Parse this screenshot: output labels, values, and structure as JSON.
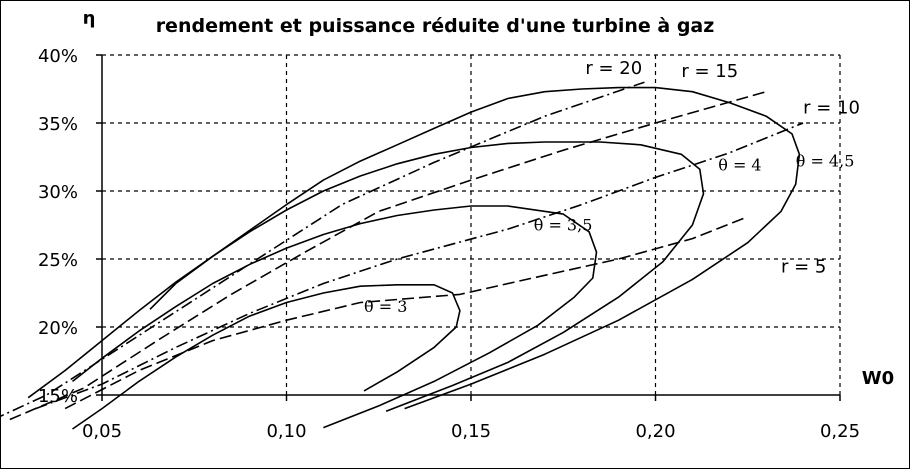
{
  "chart_data": {
    "type": "line",
    "title": "rendement et puissance réduite d'une turbine à gaz",
    "xlabel": "W0",
    "ylabel": "η",
    "xlim": [
      0.05,
      0.25
    ],
    "ylim": [
      0.15,
      0.4
    ],
    "x_ticks": [
      {
        "value": 0.05,
        "label": "0,05"
      },
      {
        "value": 0.1,
        "label": "0,10"
      },
      {
        "value": 0.15,
        "label": "0,15"
      },
      {
        "value": 0.2,
        "label": "0,20"
      },
      {
        "value": 0.25,
        "label": "0,25"
      }
    ],
    "y_ticks": [
      {
        "value": 0.15,
        "label": "15%"
      },
      {
        "value": 0.2,
        "label": "20%"
      },
      {
        "value": 0.25,
        "label": "25%"
      },
      {
        "value": 0.3,
        "label": "30%"
      },
      {
        "value": 0.35,
        "label": "35%"
      },
      {
        "value": 0.4,
        "label": "40%"
      }
    ],
    "grid": true,
    "series": [
      {
        "name": "θ = 3",
        "style": "solid",
        "label_at": [
          0.121,
          0.211
        ],
        "points": [
          [
            0.121,
            0.153
          ],
          [
            0.13,
            0.167
          ],
          [
            0.14,
            0.185
          ],
          [
            0.146,
            0.2
          ],
          [
            0.147,
            0.212
          ],
          [
            0.145,
            0.225
          ],
          [
            0.14,
            0.231
          ],
          [
            0.13,
            0.231
          ],
          [
            0.12,
            0.23
          ],
          [
            0.11,
            0.225
          ],
          [
            0.1,
            0.218
          ],
          [
            0.09,
            0.208
          ],
          [
            0.08,
            0.194
          ],
          [
            0.07,
            0.178
          ],
          [
            0.06,
            0.16
          ],
          [
            0.05,
            0.14
          ],
          [
            0.042,
            0.125
          ]
        ]
      },
      {
        "name": "θ = 3,5",
        "style": "solid",
        "label_at": [
          0.167,
          0.271
        ],
        "points": [
          [
            0.11,
            0.126
          ],
          [
            0.125,
            0.142
          ],
          [
            0.14,
            0.16
          ],
          [
            0.155,
            0.181
          ],
          [
            0.168,
            0.201
          ],
          [
            0.178,
            0.222
          ],
          [
            0.183,
            0.236
          ],
          [
            0.184,
            0.255
          ],
          [
            0.182,
            0.27
          ],
          [
            0.175,
            0.283
          ],
          [
            0.16,
            0.289
          ],
          [
            0.15,
            0.289
          ],
          [
            0.14,
            0.286
          ],
          [
            0.13,
            0.282
          ],
          [
            0.12,
            0.276
          ],
          [
            0.11,
            0.268
          ],
          [
            0.1,
            0.258
          ],
          [
            0.09,
            0.246
          ],
          [
            0.08,
            0.232
          ],
          [
            0.07,
            0.215
          ],
          [
            0.06,
            0.197
          ],
          [
            0.05,
            0.177
          ],
          [
            0.042,
            0.16
          ]
        ]
      },
      {
        "name": "θ = 4",
        "style": "solid",
        "label_at": [
          0.217,
          0.315
        ],
        "points": [
          [
            0.127,
            0.138
          ],
          [
            0.145,
            0.157
          ],
          [
            0.16,
            0.174
          ],
          [
            0.175,
            0.196
          ],
          [
            0.19,
            0.222
          ],
          [
            0.202,
            0.248
          ],
          [
            0.21,
            0.275
          ],
          [
            0.213,
            0.298
          ],
          [
            0.212,
            0.316
          ],
          [
            0.207,
            0.327
          ],
          [
            0.196,
            0.334
          ],
          [
            0.185,
            0.336
          ],
          [
            0.17,
            0.336
          ],
          [
            0.16,
            0.335
          ],
          [
            0.15,
            0.332
          ],
          [
            0.14,
            0.327
          ],
          [
            0.13,
            0.32
          ],
          [
            0.12,
            0.311
          ],
          [
            0.11,
            0.3
          ],
          [
            0.1,
            0.286
          ],
          [
            0.09,
            0.27
          ],
          [
            0.08,
            0.252
          ],
          [
            0.07,
            0.233
          ],
          [
            0.06,
            0.212
          ],
          [
            0.05,
            0.19
          ],
          [
            0.04,
            0.168
          ],
          [
            0.03,
            0.148
          ]
        ]
      },
      {
        "name": "θ = 4,5",
        "style": "solid",
        "label_at": [
          0.238,
          0.318
        ],
        "points": [
          [
            0.132,
            0.14
          ],
          [
            0.15,
            0.158
          ],
          [
            0.17,
            0.18
          ],
          [
            0.19,
            0.205
          ],
          [
            0.21,
            0.235
          ],
          [
            0.225,
            0.262
          ],
          [
            0.234,
            0.285
          ],
          [
            0.238,
            0.305
          ],
          [
            0.239,
            0.327
          ],
          [
            0.237,
            0.342
          ],
          [
            0.23,
            0.355
          ],
          [
            0.22,
            0.365
          ],
          [
            0.21,
            0.373
          ],
          [
            0.2,
            0.376
          ],
          [
            0.19,
            0.376
          ],
          [
            0.18,
            0.375
          ],
          [
            0.17,
            0.373
          ],
          [
            0.16,
            0.368
          ],
          [
            0.15,
            0.358
          ],
          [
            0.14,
            0.346
          ],
          [
            0.13,
            0.334
          ],
          [
            0.12,
            0.322
          ],
          [
            0.11,
            0.308
          ],
          [
            0.1,
            0.29
          ],
          [
            0.09,
            0.271
          ],
          [
            0.08,
            0.252
          ],
          [
            0.07,
            0.232
          ],
          [
            0.063,
            0.213
          ]
        ]
      },
      {
        "name": "r = 5",
        "style": "dashed",
        "label_at": [
          0.234,
          0.24
        ],
        "points": [
          [
            0.04,
            0.14
          ],
          [
            0.06,
            0.168
          ],
          [
            0.08,
            0.19
          ],
          [
            0.1,
            0.205
          ],
          [
            0.12,
            0.218
          ],
          [
            0.147,
            0.224
          ],
          [
            0.17,
            0.238
          ],
          [
            0.19,
            0.25
          ],
          [
            0.21,
            0.265
          ],
          [
            0.225,
            0.281
          ]
        ]
      },
      {
        "name": "r = 10",
        "style": "dashdot",
        "label_at": [
          0.24,
          0.357
        ],
        "points": [
          [
            0.032,
            0.14
          ],
          [
            0.05,
            0.158
          ],
          [
            0.07,
            0.185
          ],
          [
            0.09,
            0.21
          ],
          [
            0.11,
            0.232
          ],
          [
            0.13,
            0.25
          ],
          [
            0.16,
            0.272
          ],
          [
            0.18,
            0.29
          ],
          [
            0.2,
            0.31
          ],
          [
            0.22,
            0.328
          ],
          [
            0.24,
            0.35
          ]
        ]
      },
      {
        "name": "r = 15",
        "style": "dashed",
        "label_at": [
          0.207,
          0.384
        ],
        "points": [
          [
            0.025,
            0.132
          ],
          [
            0.045,
            0.155
          ],
          [
            0.065,
            0.19
          ],
          [
            0.085,
            0.224
          ],
          [
            0.105,
            0.255
          ],
          [
            0.125,
            0.285
          ],
          [
            0.15,
            0.308
          ],
          [
            0.175,
            0.33
          ],
          [
            0.2,
            0.35
          ],
          [
            0.23,
            0.373
          ]
        ]
      },
      {
        "name": "r = 20",
        "style": "dashdot",
        "label_at": [
          0.181,
          0.386
        ],
        "points": [
          [
            0.015,
            0.125
          ],
          [
            0.035,
            0.15
          ],
          [
            0.055,
            0.185
          ],
          [
            0.075,
            0.22
          ],
          [
            0.095,
            0.255
          ],
          [
            0.115,
            0.29
          ],
          [
            0.14,
            0.321
          ],
          [
            0.17,
            0.355
          ],
          [
            0.197,
            0.38
          ]
        ]
      }
    ]
  }
}
